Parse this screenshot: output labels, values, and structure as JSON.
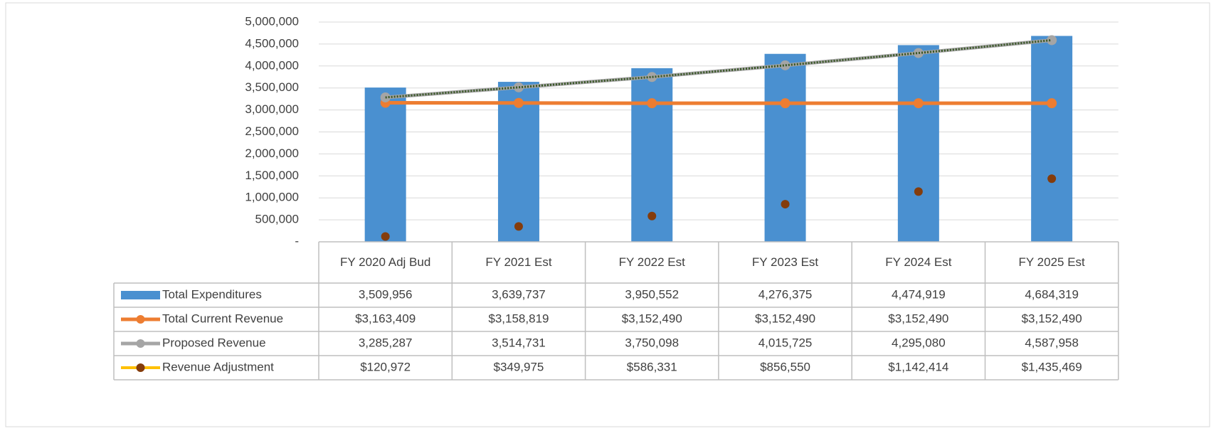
{
  "chart_data": {
    "type": "bar",
    "categories": [
      "FY 2020 Adj Bud",
      "FY 2021 Est",
      "FY 2022 Est",
      "FY 2023 Est",
      "FY 2024 Est",
      "FY 2025 Est"
    ],
    "ylim": [
      0,
      5000000
    ],
    "yticks": [
      {
        "value": 0,
        "label": "-"
      },
      {
        "value": 500000,
        "label": "500,000"
      },
      {
        "value": 1000000,
        "label": "1,000,000"
      },
      {
        "value": 1500000,
        "label": "1,500,000"
      },
      {
        "value": 2000000,
        "label": "2,000,000"
      },
      {
        "value": 2500000,
        "label": "2,500,000"
      },
      {
        "value": 3000000,
        "label": "3,000,000"
      },
      {
        "value": 3500000,
        "label": "3,500,000"
      },
      {
        "value": 4000000,
        "label": "4,000,000"
      },
      {
        "value": 4500000,
        "label": "4,500,000"
      },
      {
        "value": 5000000,
        "label": "5,000,000"
      }
    ],
    "grid": true,
    "series": [
      {
        "name": "Total Expenditures",
        "type": "bar",
        "color": "#4a90d0",
        "values": [
          3509956,
          3639737,
          3950552,
          4276375,
          4474919,
          4684319
        ],
        "value_labels": [
          "3,509,956",
          "3,639,737",
          "3,950,552",
          "4,276,375",
          "4,474,919",
          "4,684,319"
        ]
      },
      {
        "name": "Total Current Revenue",
        "type": "line",
        "color": "#ed7d31",
        "values": [
          3163409,
          3158819,
          3152490,
          3152490,
          3152490,
          3152490
        ],
        "value_labels": [
          "$3,163,409",
          "$3,158,819",
          "$3,152,490",
          "$3,152,490",
          "$3,152,490",
          "$3,152,490"
        ]
      },
      {
        "name": "Proposed Revenue",
        "type": "line",
        "color": "#a5a5a5",
        "trendline_color": "#375623",
        "values": [
          3285287,
          3514731,
          3750098,
          4015725,
          4295080,
          4587958
        ],
        "value_labels": [
          "3,285,287",
          "3,514,731",
          "3,750,098",
          "4,015,725",
          "4,295,080",
          "4,587,958"
        ]
      },
      {
        "name": "Revenue Adjustment",
        "type": "scatter",
        "color": "#843c0c",
        "legend_line_color": "#ffc000",
        "values": [
          120972,
          349975,
          586331,
          856550,
          1142414,
          1435469
        ],
        "value_labels": [
          "$120,972",
          "$349,975",
          "$586,331",
          "$856,550",
          "$1,142,414",
          "$1,435,469"
        ]
      }
    ]
  }
}
